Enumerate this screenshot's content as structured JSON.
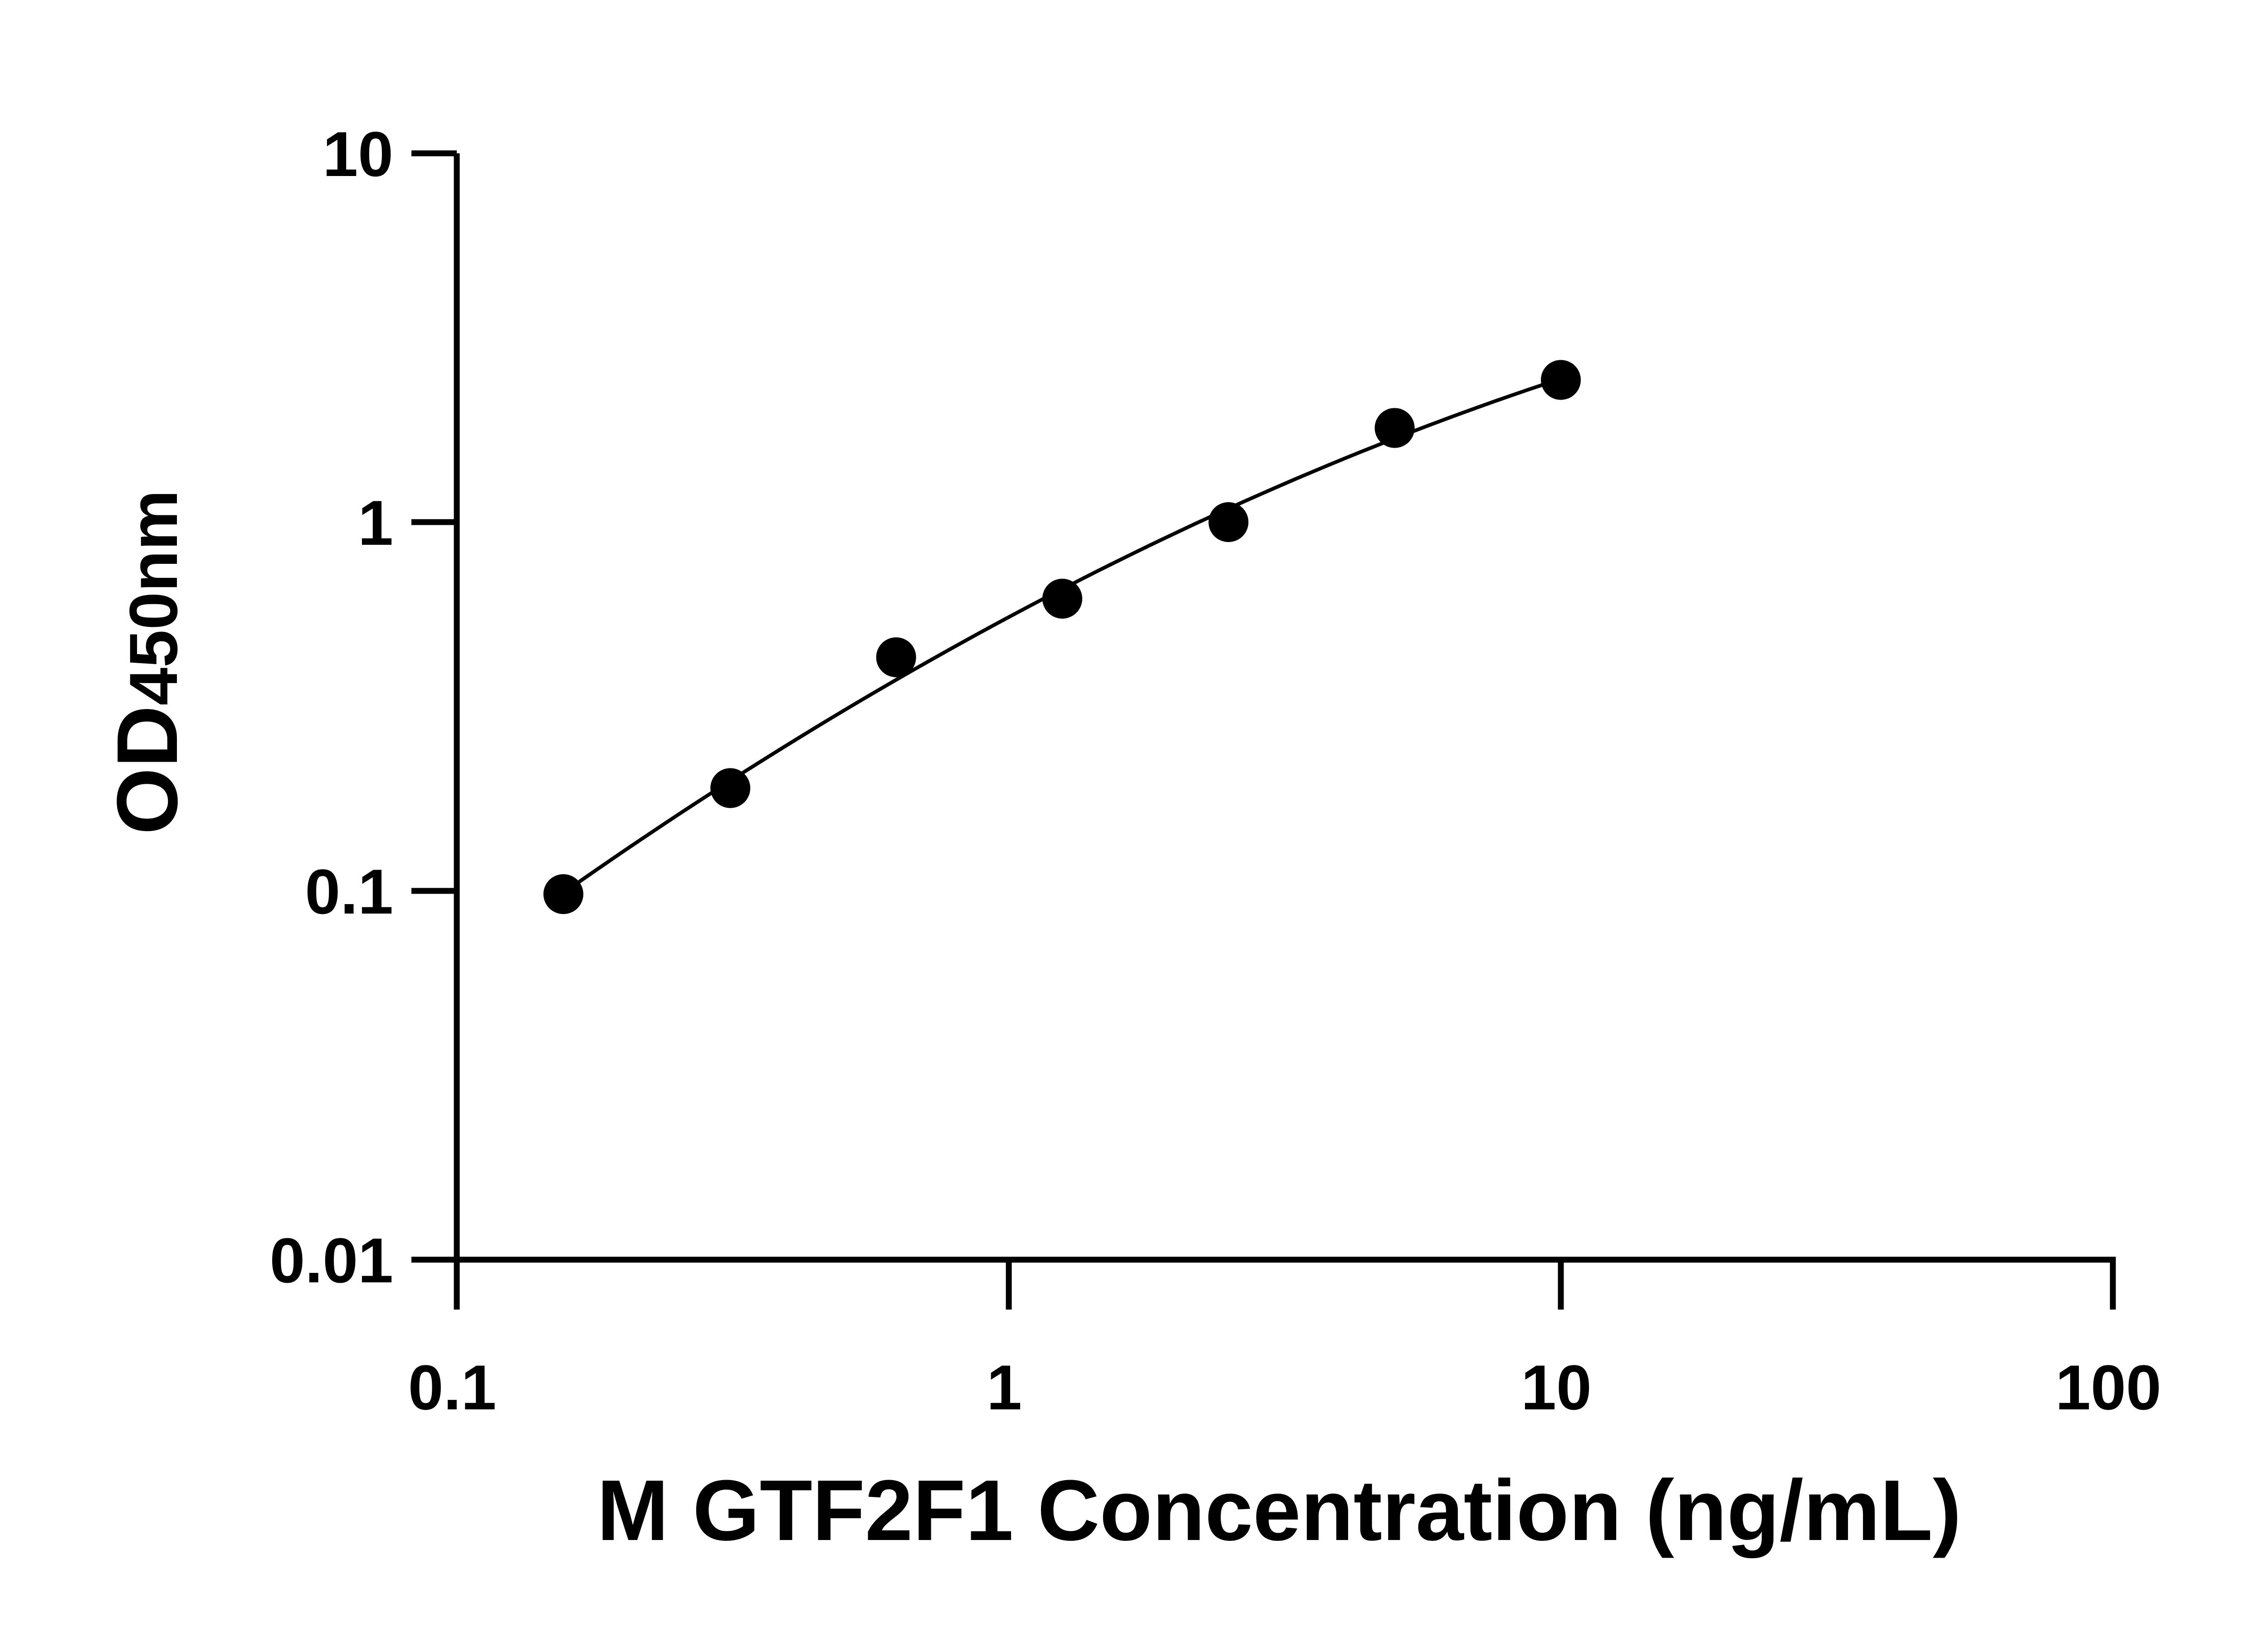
{
  "chart_data": {
    "type": "scatter",
    "title": "",
    "xlabel": "M GTF2F1 Concentration (ng/mL)",
    "ylabel_main": "OD",
    "ylabel_sub": "450nm",
    "xscale": "log",
    "yscale": "log",
    "xlim": [
      0.1,
      100
    ],
    "ylim": [
      0.01,
      10
    ],
    "xticks": [
      0.1,
      1,
      10,
      100
    ],
    "xtick_labels": [
      "0.1",
      "1",
      "10",
      "100"
    ],
    "yticks": [
      0.01,
      0.1,
      1,
      10
    ],
    "ytick_labels": [
      "0.01",
      "0.1",
      "1",
      "10"
    ],
    "grid": false,
    "fit_curve": true,
    "series": [
      {
        "x": [
          0.156,
          0.313,
          0.625,
          1.25,
          2.5,
          5,
          10
        ],
        "y": [
          0.098,
          0.19,
          0.43,
          0.62,
          1.0,
          1.8,
          2.43
        ]
      }
    ],
    "color": "#000000"
  }
}
